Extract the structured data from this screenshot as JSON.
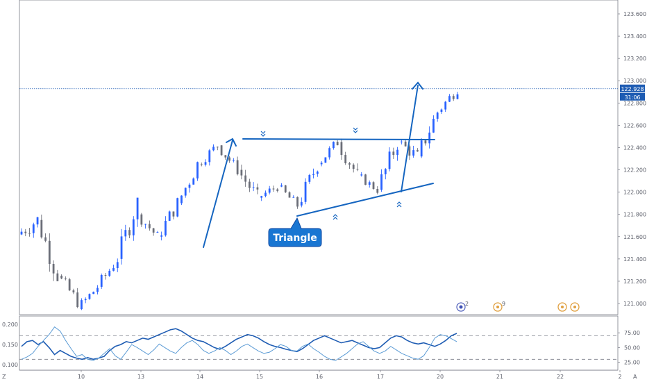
{
  "chart_data": [
    {
      "type": "candlestick",
      "title": "",
      "xlabel": "",
      "ylabel": "",
      "x_tick_labels": [
        "10",
        "13",
        "14",
        "15",
        "16",
        "17",
        "20",
        "21",
        "22",
        "2"
      ],
      "y_tick_labels": [
        "123.600",
        "123.400",
        "123.200",
        "123.000",
        "122.800",
        "122.600",
        "122.400",
        "122.200",
        "122.000",
        "121.800",
        "121.600",
        "121.400",
        "121.200",
        "121.000"
      ],
      "ylim": [
        120.94,
        123.8
      ],
      "last_price": "122.928",
      "countdown": "31:06",
      "grid": false,
      "series": [
        {
          "ohlc_sampled": [
            [
              "10",
              121.62,
              121.95,
              121.5,
              121.75
            ],
            [
              "10",
              121.75,
              121.8,
              121.2,
              121.25
            ],
            [
              "10",
              121.25,
              121.3,
              120.95,
              121.02
            ],
            [
              "13",
              120.95,
              121.2,
              120.9,
              121.15
            ],
            [
              "13",
              121.15,
              121.45,
              121.1,
              121.4
            ],
            [
              "13",
              121.4,
              121.95,
              121.35,
              121.92
            ],
            [
              "14",
              121.8,
              121.85,
              121.55,
              121.6
            ],
            [
              "14",
              121.6,
              121.95,
              121.55,
              121.9
            ],
            [
              "14",
              121.9,
              122.3,
              121.85,
              122.25
            ],
            [
              "15",
              122.25,
              122.48,
              122.2,
              122.42
            ],
            [
              "15",
              122.42,
              122.45,
              122.15,
              122.2
            ],
            [
              "15",
              122.2,
              122.25,
              121.82,
              121.95
            ],
            [
              "16",
              121.95,
              122.15,
              121.9,
              122.05
            ],
            [
              "16",
              122.05,
              122.08,
              121.82,
              121.88
            ],
            [
              "16",
              121.88,
              122.3,
              121.85,
              122.25
            ],
            [
              "16",
              122.25,
              122.5,
              122.2,
              122.45
            ],
            [
              "17",
              122.45,
              122.48,
              122.05,
              122.15
            ],
            [
              "17",
              122.15,
              122.2,
              121.98,
              122.02
            ],
            [
              "17",
              122.02,
              122.48,
              121.95,
              122.45
            ],
            [
              "20",
              122.45,
              122.6,
              122.25,
              122.32
            ],
            [
              "20",
              122.32,
              122.75,
              122.28,
              122.72
            ],
            [
              "20",
              122.72,
              122.98,
              122.68,
              122.93
            ]
          ]
        }
      ],
      "annotations": {
        "callout": "Triangle",
        "resistance_level": 122.47
      }
    },
    {
      "type": "line",
      "title": "",
      "xlabel": "",
      "ylabel": "",
      "left_tick_labels": [
        "0.200",
        "0.150",
        "0.100"
      ],
      "right_tick_labels": [
        "75.00",
        "50.00",
        "25.00"
      ],
      "dashed_levels": [
        70,
        30
      ],
      "ylim": [
        15,
        100
      ],
      "series": [
        {
          "name": "",
          "color": "#1e5cb3",
          "values": [
            52,
            60,
            62,
            55,
            60,
            50,
            38,
            45,
            40,
            35,
            32,
            30,
            33,
            30,
            32,
            35,
            45,
            52,
            55,
            60,
            58,
            62,
            66,
            64,
            68,
            72,
            76,
            80,
            82,
            78,
            72,
            66,
            62,
            60,
            55,
            50,
            47,
            52,
            58,
            64,
            68,
            72,
            70,
            66,
            60,
            55,
            52,
            50,
            47,
            45,
            43,
            48,
            55,
            62,
            66,
            70,
            66,
            62,
            58,
            60,
            62,
            58,
            54,
            50,
            48,
            50,
            58,
            66,
            70,
            68,
            62,
            58,
            56,
            58,
            55,
            52,
            56,
            62,
            70,
            74
          ]
        },
        {
          "name": "",
          "color": "#5b9bd5",
          "values": [
            30,
            34,
            40,
            52,
            62,
            72,
            85,
            78,
            62,
            48,
            35,
            38,
            30,
            28,
            32,
            40,
            48,
            36,
            30,
            42,
            55,
            50,
            44,
            38,
            46,
            56,
            50,
            44,
            40,
            50,
            58,
            62,
            55,
            45,
            40,
            44,
            50,
            45,
            38,
            44,
            52,
            56,
            50,
            44,
            40,
            42,
            48,
            55,
            52,
            45,
            44,
            52,
            56,
            48,
            42,
            35,
            30,
            28,
            34,
            40,
            48,
            56,
            60,
            52,
            44,
            40,
            44,
            52,
            46,
            40,
            36,
            32,
            30,
            36,
            50,
            66,
            72,
            70,
            65,
            60
          ]
        }
      ]
    }
  ],
  "axis_corner_labels": {
    "bottom_left": "Z",
    "bottom_right": "A"
  },
  "event_markers": [
    "2",
    "9"
  ]
}
